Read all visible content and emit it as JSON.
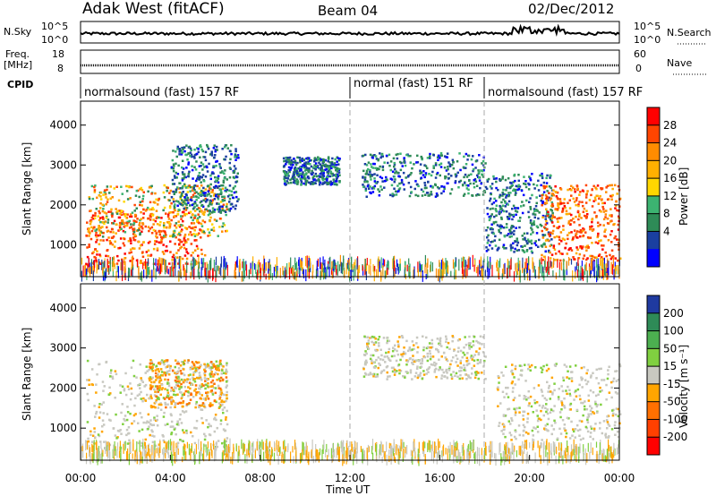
{
  "header": {
    "title": "Adak West (fitACF)",
    "beam": "Beam 04",
    "date": "02/Dec/2012"
  },
  "noise_panel": {
    "left_label": "N.Sky",
    "right_label": "N.Search",
    "left_ticks": [
      "10^5",
      "10^0"
    ],
    "right_ticks": [
      "10^5",
      "10^0"
    ]
  },
  "freq_panel": {
    "left_label_1": "Freq.",
    "left_label_2": "[MHz]",
    "right_label": "Nave",
    "left_ticks": [
      "18",
      "8"
    ],
    "right_ticks": [
      "60",
      "0"
    ]
  },
  "cpid": {
    "label": "CPID",
    "segments": [
      {
        "name": "normalsound (fast) 157 RF",
        "start_hour": 0,
        "end_hour": 12
      },
      {
        "name": "normal (fast) 151 RF",
        "start_hour": 12,
        "end_hour": 18
      },
      {
        "name": "normalsound (fast) 157 RF",
        "start_hour": 18,
        "end_hour": 24
      }
    ]
  },
  "axes": {
    "x_label": "Time UT",
    "x_ticks": [
      "00:00",
      "04:00",
      "08:00",
      "12:00",
      "16:00",
      "20:00",
      "00:00"
    ],
    "y_label": "Slant Range [km]",
    "y_ticks": [
      "1000",
      "2000",
      "3000",
      "4000"
    ]
  },
  "power_colorbar": {
    "label": "Power [dB]",
    "ticks": [
      "28",
      "24",
      "20",
      "16",
      "12",
      "8",
      "4"
    ],
    "colors": [
      "#ff0000",
      "#ff4500",
      "#ff8c00",
      "#ffb000",
      "#ffd700",
      "#3cb371",
      "#2e8b57",
      "#1a3fa0",
      "#0000ff"
    ]
  },
  "velocity_colorbar": {
    "label": "Velocity [m s⁻¹]",
    "ticks": [
      "200",
      "100",
      "50",
      "15",
      "-15",
      "-50",
      "-100",
      "-200"
    ],
    "colors": [
      "#1f3aa0",
      "#2e8b57",
      "#4caf50",
      "#80d040",
      "#c8c8c0",
      "#ffa500",
      "#ff7000",
      "#ff4000",
      "#ff0000"
    ]
  },
  "chart_data": {
    "type": "heatmap",
    "x_range_hours": [
      0,
      24
    ],
    "y_range_km": [
      200,
      4600
    ],
    "power_regions": [
      {
        "t0": 0.2,
        "t1": 5.5,
        "r0": 500,
        "r1": 1900,
        "level": "high"
      },
      {
        "t0": 0.3,
        "t1": 6.5,
        "r0": 1200,
        "r1": 2500,
        "level": "mid"
      },
      {
        "t0": 4.0,
        "t1": 7.0,
        "r0": 1800,
        "r1": 3500,
        "level": "low"
      },
      {
        "t0": 9.0,
        "t1": 11.5,
        "r0": 2500,
        "r1": 3200,
        "level": "low"
      },
      {
        "t0": 12.5,
        "t1": 18.0,
        "r0": 2200,
        "r1": 3300,
        "level": "low"
      },
      {
        "t0": 18.0,
        "t1": 21.0,
        "r0": 800,
        "r1": 2800,
        "level": "low"
      },
      {
        "t0": 20.5,
        "t1": 24.0,
        "r0": 600,
        "r1": 2500,
        "level": "high"
      },
      {
        "t0": 0.0,
        "t1": 24.0,
        "r0": 200,
        "r1": 600,
        "level": "ground"
      }
    ],
    "velocity_regions": [
      {
        "t0": 0.2,
        "t1": 6.5,
        "r0": 500,
        "r1": 2700,
        "level": "near-zero"
      },
      {
        "t0": 3.0,
        "t1": 6.5,
        "r0": 1500,
        "r1": 2700,
        "level": "slight-away"
      },
      {
        "t0": 12.5,
        "t1": 18.0,
        "r0": 2200,
        "r1": 3300,
        "level": "near-zero"
      },
      {
        "t0": 18.5,
        "t1": 24.0,
        "r0": 700,
        "r1": 2600,
        "level": "near-zero"
      },
      {
        "t0": 0.0,
        "t1": 24.0,
        "r0": 200,
        "r1": 600,
        "level": "ground"
      }
    ]
  }
}
